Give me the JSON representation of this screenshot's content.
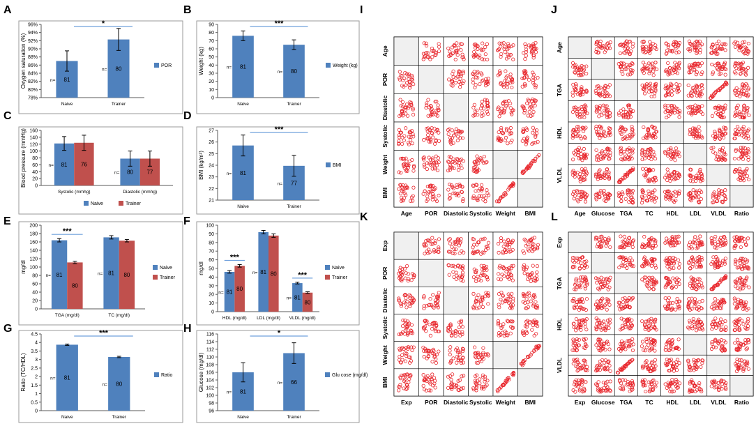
{
  "colors": {
    "blue": "#4f81bd",
    "red": "#c0504d",
    "scatter": "#e8262c",
    "axis": "#595959",
    "frame": "#9a9a9a",
    "sig": "#6fa0dc",
    "grid": "#d9d9d9"
  },
  "chart_data": [
    {
      "panel": "A",
      "type": "bar",
      "ylabel": "Oxygen saturation (%)",
      "ylim": [
        78,
        96
      ],
      "yticks": [
        78,
        80,
        82,
        84,
        86,
        88,
        90,
        92,
        94,
        96
      ],
      "ytick_suffix": "%",
      "categories": [
        "Naive",
        "Trainer"
      ],
      "series": [
        {
          "name": "POR",
          "color": "blue",
          "values": [
            87,
            92.3
          ],
          "errors": [
            2.5,
            2.7
          ],
          "labels": [
            "81",
            "80"
          ]
        }
      ],
      "legend": [
        "POR"
      ],
      "n_prefix": "n=",
      "sig": [
        {
          "from": 0,
          "to": 1,
          "label": "*"
        }
      ]
    },
    {
      "panel": "B",
      "type": "bar",
      "ylabel": "Weight (kg)",
      "ylim": [
        0,
        90
      ],
      "yticks": [
        0,
        10,
        20,
        30,
        40,
        50,
        60,
        70,
        80,
        90
      ],
      "categories": [
        "Naive",
        "Trainer"
      ],
      "series": [
        {
          "name": "Weight (kg)",
          "color": "blue",
          "values": [
            76,
            65
          ],
          "errors": [
            6,
            6
          ],
          "labels": [
            "81",
            "80"
          ]
        }
      ],
      "legend": [
        "Weight (kg)"
      ],
      "n_prefix": "n=",
      "sig": [
        {
          "from": 0,
          "to": 1,
          "label": "***"
        }
      ]
    },
    {
      "panel": "C",
      "type": "bar",
      "ylabel": "Blood pressure (mmHg)",
      "ylim": [
        0,
        160
      ],
      "yticks": [
        0,
        20,
        40,
        60,
        80,
        100,
        120,
        140,
        160
      ],
      "categories": [
        "Systolic (mmhg)",
        "Diastolic (mmhg)"
      ],
      "series": [
        {
          "name": "Naive",
          "color": "blue",
          "values": [
            122,
            78
          ],
          "errors": [
            20,
            22
          ],
          "labels": [
            "81",
            "80"
          ]
        },
        {
          "name": "Trainer",
          "color": "red",
          "values": [
            124,
            78
          ],
          "errors": [
            22,
            22
          ],
          "labels": [
            "76",
            "77"
          ]
        }
      ],
      "legend": [
        "Naive",
        "Trainer"
      ],
      "n_prefix": "n=",
      "sig": []
    },
    {
      "panel": "D",
      "type": "bar",
      "ylabel": "BMI (kg/m²)",
      "ylim": [
        21,
        27
      ],
      "yticks": [
        21,
        22,
        23,
        24,
        25,
        26,
        27
      ],
      "categories": [
        "Naive",
        "Trainer"
      ],
      "series": [
        {
          "name": "BMI",
          "color": "blue",
          "values": [
            25.7,
            23.95
          ],
          "errors": [
            0.9,
            0.9
          ],
          "labels": [
            "81",
            "77"
          ]
        }
      ],
      "legend": [
        "BMI"
      ],
      "n_prefix": "n=",
      "sig": [
        {
          "from": 0,
          "to": 1,
          "label": "***"
        }
      ]
    },
    {
      "panel": "E",
      "type": "bar",
      "ylabel": "mg/dl",
      "ylim": [
        0,
        200
      ],
      "yticks": [
        0,
        20,
        40,
        60,
        80,
        100,
        120,
        140,
        160,
        180,
        200
      ],
      "categories": [
        "TGA (mg/dl)",
        "TC (mg/dl)"
      ],
      "series": [
        {
          "name": "Naive",
          "color": "blue",
          "values": [
            164,
            171
          ],
          "errors": [
            4,
            4
          ],
          "labels": [
            "81",
            "81"
          ]
        },
        {
          "name": "Trainer",
          "color": "red",
          "values": [
            111,
            163
          ],
          "errors": [
            3,
            3
          ],
          "labels": [
            "80",
            "80"
          ]
        }
      ],
      "legend": [
        "Naive",
        "Trainer"
      ],
      "n_prefix": "n=",
      "sig": [
        {
          "cat": 0,
          "label": "***"
        }
      ]
    },
    {
      "panel": "F",
      "type": "bar",
      "ylabel": "mg/dl",
      "ylim": [
        0,
        100
      ],
      "yticks": [
        0,
        10,
        20,
        30,
        40,
        50,
        60,
        70,
        80,
        90,
        100
      ],
      "categories": [
        "HDL (mg/dl)",
        "LDL (mg/dl)",
        "VLDL (mg/dl)"
      ],
      "series": [
        {
          "name": "Naive",
          "color": "blue",
          "values": [
            46,
            92,
            33
          ],
          "errors": [
            1.5,
            2,
            1
          ],
          "labels": [
            "81",
            "81",
            "81"
          ]
        },
        {
          "name": "Trainer",
          "color": "red",
          "values": [
            53,
            88,
            22
          ],
          "errors": [
            1.5,
            2,
            1
          ],
          "labels": [
            "80",
            "80",
            "80"
          ]
        }
      ],
      "legend": [
        "Naive",
        "Trainer"
      ],
      "n_prefix": "n=",
      "sig": [
        {
          "cat": 0,
          "label": "***"
        },
        {
          "cat": 2,
          "label": "***"
        }
      ]
    },
    {
      "panel": "G",
      "type": "bar",
      "ylabel": "Ratio (TC/HDL)",
      "ylim": [
        0,
        4.5
      ],
      "yticks": [
        0,
        0.5,
        1,
        1.5,
        2,
        2.5,
        3,
        3.5,
        4,
        4.5
      ],
      "categories": [
        "Naive",
        "Trainer"
      ],
      "series": [
        {
          "name": "Ratio",
          "color": "blue",
          "values": [
            3.87,
            3.15
          ],
          "errors": [
            0.04,
            0.04
          ],
          "labels": [
            "81",
            "80"
          ]
        }
      ],
      "legend": [
        "Ratio"
      ],
      "n_prefix": "n=",
      "sig": [
        {
          "from": 0,
          "to": 1,
          "label": "***"
        }
      ]
    },
    {
      "panel": "H",
      "type": "bar",
      "ylabel": "Glucose (mg/dl)",
      "ylim": [
        96,
        116
      ],
      "yticks": [
        96,
        98,
        100,
        102,
        104,
        106,
        108,
        110,
        112,
        114,
        116
      ],
      "categories": [
        "Naive",
        "Trainer"
      ],
      "series": [
        {
          "name": "Glu cose (mg/dl)",
          "color": "blue",
          "values": [
            106,
            111
          ],
          "errors": [
            2.5,
            2.7
          ],
          "labels": [
            "81",
            "66"
          ]
        }
      ],
      "legend": [
        "Glu cose (mg/dl)"
      ],
      "n_prefix": "n=",
      "sig": [
        {
          "from": 0,
          "to": 1,
          "label": "*"
        }
      ]
    },
    {
      "panel": "I",
      "type": "scatter",
      "matrix": true,
      "rows": [
        "Age",
        "POR",
        "Diastolic",
        "Systolic",
        "Weight",
        "BMI"
      ],
      "cols": [
        "Age",
        "POR",
        "Diastolic",
        "Systolic",
        "Weight",
        "BMI"
      ],
      "correlated_pairs": [
        [
          "Weight",
          "BMI"
        ]
      ]
    },
    {
      "panel": "J",
      "type": "scatter",
      "matrix": true,
      "rows": [
        "Age",
        "",
        "TGA",
        "",
        "HDL",
        "",
        "VLDL",
        ""
      ],
      "cols": [
        "Age",
        "Glucose",
        "TGA",
        "TC",
        "HDL",
        "LDL",
        "VLDL",
        "Ratio"
      ],
      "correlated_pairs": [
        [
          "TGA",
          "VLDL"
        ],
        [
          "TC",
          "LDL"
        ],
        [
          "TC",
          "Ratio"
        ]
      ]
    },
    {
      "panel": "K",
      "type": "scatter",
      "matrix": true,
      "rows": [
        "Exp",
        "POR",
        "Diastolic",
        "Systolic",
        "Weight",
        "BMI"
      ],
      "cols": [
        "Exp",
        "POR",
        "Diastolic",
        "Systolic",
        "Weight",
        "BMI"
      ],
      "correlated_pairs": [
        [
          "Weight",
          "BMI"
        ]
      ]
    },
    {
      "panel": "L",
      "type": "scatter",
      "matrix": true,
      "rows": [
        "Exp",
        "",
        "TGA",
        "",
        "HDL",
        "",
        "VLDL",
        ""
      ],
      "cols": [
        "Exp",
        "Glucose",
        "TGA",
        "TC",
        "HDL",
        "LDL",
        "VLDL",
        "Ratio"
      ],
      "correlated_pairs": [
        [
          "TGA",
          "VLDL"
        ],
        [
          "TC",
          "LDL"
        ],
        [
          "TC",
          "Ratio"
        ]
      ]
    }
  ]
}
